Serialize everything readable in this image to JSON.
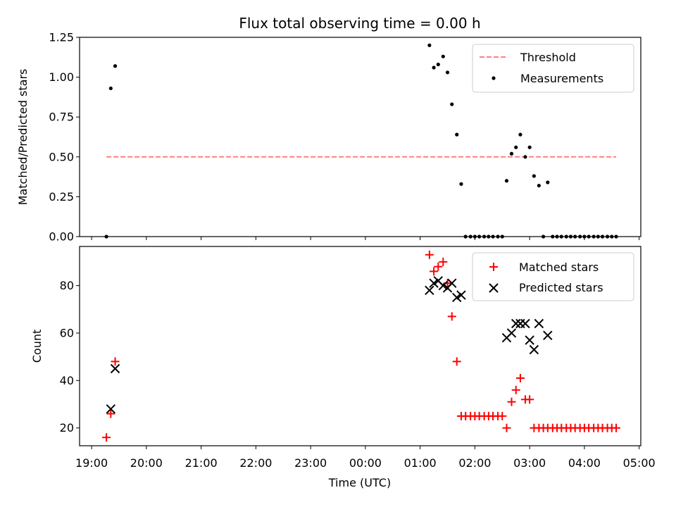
{
  "chart_data": [
    {
      "type": "scatter",
      "title": "Flux total observing time = 0.00 h",
      "xlabel": "",
      "ylabel": "Matched/Predicted stars",
      "x_unit": "time (UTC, hours after 19:00)",
      "xlim": [
        18.78,
        29.03
      ],
      "ylim": [
        0,
        1.25
      ],
      "yticks": [
        "0.00",
        "0.25",
        "0.50",
        "0.75",
        "1.00",
        "1.25"
      ],
      "legend_position": "upper right",
      "threshold": {
        "name": "Threshold",
        "value": 0.5,
        "x_range": [
          19.27,
          28.58
        ],
        "color": "#ff7f7f",
        "style": "dashed"
      },
      "series": [
        {
          "name": "Measurements",
          "color": "#000000",
          "marker": "dot",
          "points": [
            [
              19.27,
              0.0
            ],
            [
              19.35,
              0.93
            ],
            [
              19.43,
              1.07
            ],
            [
              25.17,
              1.2
            ],
            [
              25.25,
              1.06
            ],
            [
              25.33,
              1.08
            ],
            [
              25.42,
              1.13
            ],
            [
              25.5,
              1.03
            ],
            [
              25.58,
              0.83
            ],
            [
              25.67,
              0.64
            ],
            [
              25.75,
              0.33
            ],
            [
              25.83,
              0.0
            ],
            [
              25.92,
              0.0
            ],
            [
              26.0,
              0.0
            ],
            [
              26.08,
              0.0
            ],
            [
              26.17,
              0.0
            ],
            [
              26.25,
              0.0
            ],
            [
              26.33,
              0.0
            ],
            [
              26.42,
              0.0
            ],
            [
              26.5,
              0.0
            ],
            [
              26.58,
              0.35
            ],
            [
              26.67,
              0.52
            ],
            [
              26.75,
              0.56
            ],
            [
              26.83,
              0.64
            ],
            [
              26.92,
              0.5
            ],
            [
              27.0,
              0.56
            ],
            [
              27.08,
              0.38
            ],
            [
              27.17,
              0.32
            ],
            [
              27.25,
              0.0
            ],
            [
              27.33,
              0.34
            ],
            [
              27.42,
              0.0
            ],
            [
              27.5,
              0.0
            ],
            [
              27.58,
              0.0
            ],
            [
              27.67,
              0.0
            ],
            [
              27.75,
              0.0
            ],
            [
              27.83,
              0.0
            ],
            [
              27.92,
              0.0
            ],
            [
              28.0,
              0.0
            ],
            [
              28.08,
              0.0
            ],
            [
              28.17,
              0.0
            ],
            [
              28.25,
              0.0
            ],
            [
              28.33,
              0.0
            ],
            [
              28.42,
              0.0
            ],
            [
              28.5,
              0.0
            ],
            [
              28.58,
              0.0
            ]
          ]
        }
      ]
    },
    {
      "type": "scatter",
      "title": "",
      "xlabel": "Time (UTC)",
      "ylabel": "Count",
      "x_unit": "time (UTC, hours after 19:00)",
      "xlim": [
        18.78,
        29.03
      ],
      "ylim": [
        12.5,
        96.5
      ],
      "yticks": [
        "20",
        "40",
        "60",
        "80"
      ],
      "xticks": [
        "19:00",
        "20:00",
        "21:00",
        "22:00",
        "23:00",
        "00:00",
        "01:00",
        "02:00",
        "03:00",
        "04:00",
        "05:00"
      ],
      "legend_position": "upper right",
      "series": [
        {
          "name": "Matched stars",
          "color": "#ff0000",
          "marker": "plus",
          "points": [
            [
              19.27,
              16
            ],
            [
              19.35,
              26
            ],
            [
              19.43,
              48
            ],
            [
              25.17,
              93
            ],
            [
              25.25,
              86
            ],
            [
              25.33,
              88
            ],
            [
              25.42,
              90
            ],
            [
              25.5,
              81
            ],
            [
              25.58,
              67
            ],
            [
              25.67,
              48
            ],
            [
              25.75,
              25
            ],
            [
              25.83,
              25
            ],
            [
              25.92,
              25
            ],
            [
              26.0,
              25
            ],
            [
              26.08,
              25
            ],
            [
              26.17,
              25
            ],
            [
              26.25,
              25
            ],
            [
              26.33,
              25
            ],
            [
              26.42,
              25
            ],
            [
              26.5,
              25
            ],
            [
              26.58,
              20
            ],
            [
              26.67,
              31
            ],
            [
              26.75,
              36
            ],
            [
              26.83,
              41
            ],
            [
              26.92,
              32
            ],
            [
              27.0,
              32
            ],
            [
              27.08,
              20
            ],
            [
              27.17,
              20
            ],
            [
              27.25,
              20
            ],
            [
              27.33,
              20
            ],
            [
              27.42,
              20
            ],
            [
              27.5,
              20
            ],
            [
              27.58,
              20
            ],
            [
              27.67,
              20
            ],
            [
              27.75,
              20
            ],
            [
              27.83,
              20
            ],
            [
              27.92,
              20
            ],
            [
              28.0,
              20
            ],
            [
              28.08,
              20
            ],
            [
              28.17,
              20
            ],
            [
              28.25,
              20
            ],
            [
              28.33,
              20
            ],
            [
              28.42,
              20
            ],
            [
              28.5,
              20
            ],
            [
              28.58,
              20
            ]
          ]
        },
        {
          "name": "Predicted stars",
          "color": "#000000",
          "marker": "x",
          "points": [
            [
              19.35,
              28
            ],
            [
              19.43,
              45
            ],
            [
              25.17,
              78
            ],
            [
              25.25,
              81
            ],
            [
              25.33,
              82
            ],
            [
              25.42,
              80
            ],
            [
              25.5,
              79
            ],
            [
              25.58,
              81
            ],
            [
              25.67,
              75
            ],
            [
              25.75,
              76
            ],
            [
              26.58,
              58
            ],
            [
              26.67,
              60
            ],
            [
              26.75,
              64
            ],
            [
              26.83,
              64
            ],
            [
              26.92,
              64
            ],
            [
              27.0,
              57
            ],
            [
              27.08,
              53
            ],
            [
              27.17,
              64
            ],
            [
              27.33,
              59
            ]
          ]
        }
      ]
    }
  ]
}
